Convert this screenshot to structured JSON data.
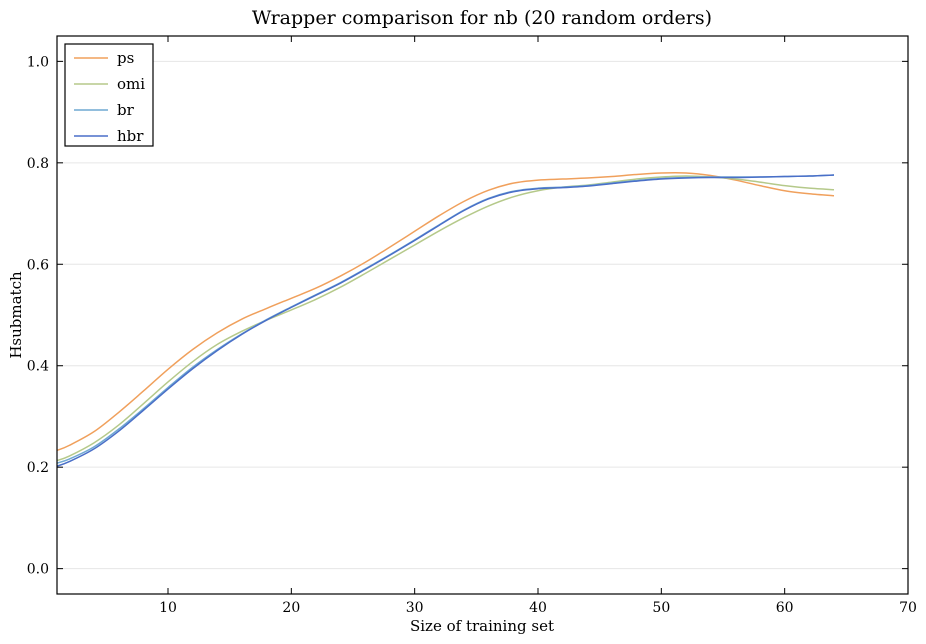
{
  "chart_data": {
    "type": "line",
    "title": "Wrapper comparison for nb (20 random orders)",
    "xlabel": "Size of training set",
    "ylabel": "Hsubmatch",
    "xlim": [
      1,
      70
    ],
    "ylim": [
      -0.05,
      1.05
    ],
    "xticks": [
      10,
      20,
      30,
      40,
      50,
      60,
      70
    ],
    "yticks": [
      0.0,
      0.2,
      0.4,
      0.6,
      0.8,
      1.0
    ],
    "xtick_labels": [
      "10",
      "20",
      "30",
      "40",
      "50",
      "60",
      "70"
    ],
    "ytick_labels": [
      "0.0",
      "0.2",
      "0.4",
      "0.6",
      "0.8",
      "1.0"
    ],
    "grid": true,
    "legend_position": "top-left",
    "series": [
      {
        "name": "ps",
        "color": "#f0a05c",
        "x": [
          1,
          2,
          4,
          6,
          8,
          10,
          12,
          14,
          16,
          18,
          20,
          22,
          24,
          26,
          28,
          30,
          32,
          34,
          36,
          38,
          40,
          42,
          44,
          46,
          48,
          50,
          52,
          54,
          56,
          58,
          60,
          62,
          64
        ],
        "y": [
          0.233,
          0.243,
          0.27,
          0.308,
          0.35,
          0.393,
          0.432,
          0.465,
          0.492,
          0.513,
          0.533,
          0.553,
          0.577,
          0.604,
          0.634,
          0.665,
          0.696,
          0.724,
          0.746,
          0.76,
          0.766,
          0.768,
          0.77,
          0.773,
          0.777,
          0.78,
          0.78,
          0.775,
          0.766,
          0.755,
          0.745,
          0.739,
          0.735
        ]
      },
      {
        "name": "omi",
        "color": "#b5c98a",
        "x": [
          1,
          2,
          4,
          6,
          8,
          10,
          12,
          14,
          16,
          18,
          20,
          22,
          24,
          26,
          28,
          30,
          32,
          34,
          36,
          38,
          40,
          42,
          44,
          46,
          48,
          50,
          52,
          54,
          56,
          58,
          60,
          62,
          64
        ],
        "y": [
          0.213,
          0.222,
          0.248,
          0.283,
          0.325,
          0.368,
          0.408,
          0.442,
          0.468,
          0.49,
          0.51,
          0.531,
          0.555,
          0.582,
          0.61,
          0.638,
          0.666,
          0.692,
          0.715,
          0.733,
          0.745,
          0.752,
          0.756,
          0.762,
          0.768,
          0.772,
          0.774,
          0.772,
          0.768,
          0.762,
          0.755,
          0.75,
          0.747
        ]
      },
      {
        "name": "br",
        "color": "#6fa8d2",
        "x": [
          1,
          2,
          4,
          6,
          8,
          10,
          12,
          14,
          16,
          18,
          20,
          22,
          24,
          26,
          28,
          30,
          32,
          34,
          36,
          38,
          40,
          42,
          44,
          46,
          48,
          50,
          52,
          54,
          56,
          58,
          60,
          62,
          64
        ],
        "y": [
          0.208,
          0.216,
          0.24,
          0.275,
          0.315,
          0.357,
          0.397,
          0.432,
          0.463,
          0.491,
          0.516,
          0.54,
          0.564,
          0.591,
          0.619,
          0.648,
          0.678,
          0.707,
          0.73,
          0.744,
          0.75,
          0.752,
          0.755,
          0.76,
          0.765,
          0.769,
          0.771,
          0.772,
          0.772,
          0.772,
          0.773,
          0.774,
          0.776
        ]
      },
      {
        "name": "hbr",
        "color": "#4a6fc8",
        "x": [
          1,
          2,
          4,
          6,
          8,
          10,
          12,
          14,
          16,
          18,
          20,
          22,
          24,
          26,
          28,
          30,
          32,
          34,
          36,
          38,
          40,
          42,
          44,
          46,
          48,
          50,
          52,
          54,
          56,
          58,
          60,
          62,
          64
        ],
        "y": [
          0.202,
          0.211,
          0.236,
          0.271,
          0.312,
          0.354,
          0.394,
          0.43,
          0.462,
          0.49,
          0.515,
          0.539,
          0.563,
          0.59,
          0.618,
          0.647,
          0.677,
          0.706,
          0.729,
          0.743,
          0.749,
          0.751,
          0.754,
          0.759,
          0.764,
          0.768,
          0.77,
          0.771,
          0.771,
          0.772,
          0.773,
          0.774,
          0.776
        ]
      }
    ]
  }
}
